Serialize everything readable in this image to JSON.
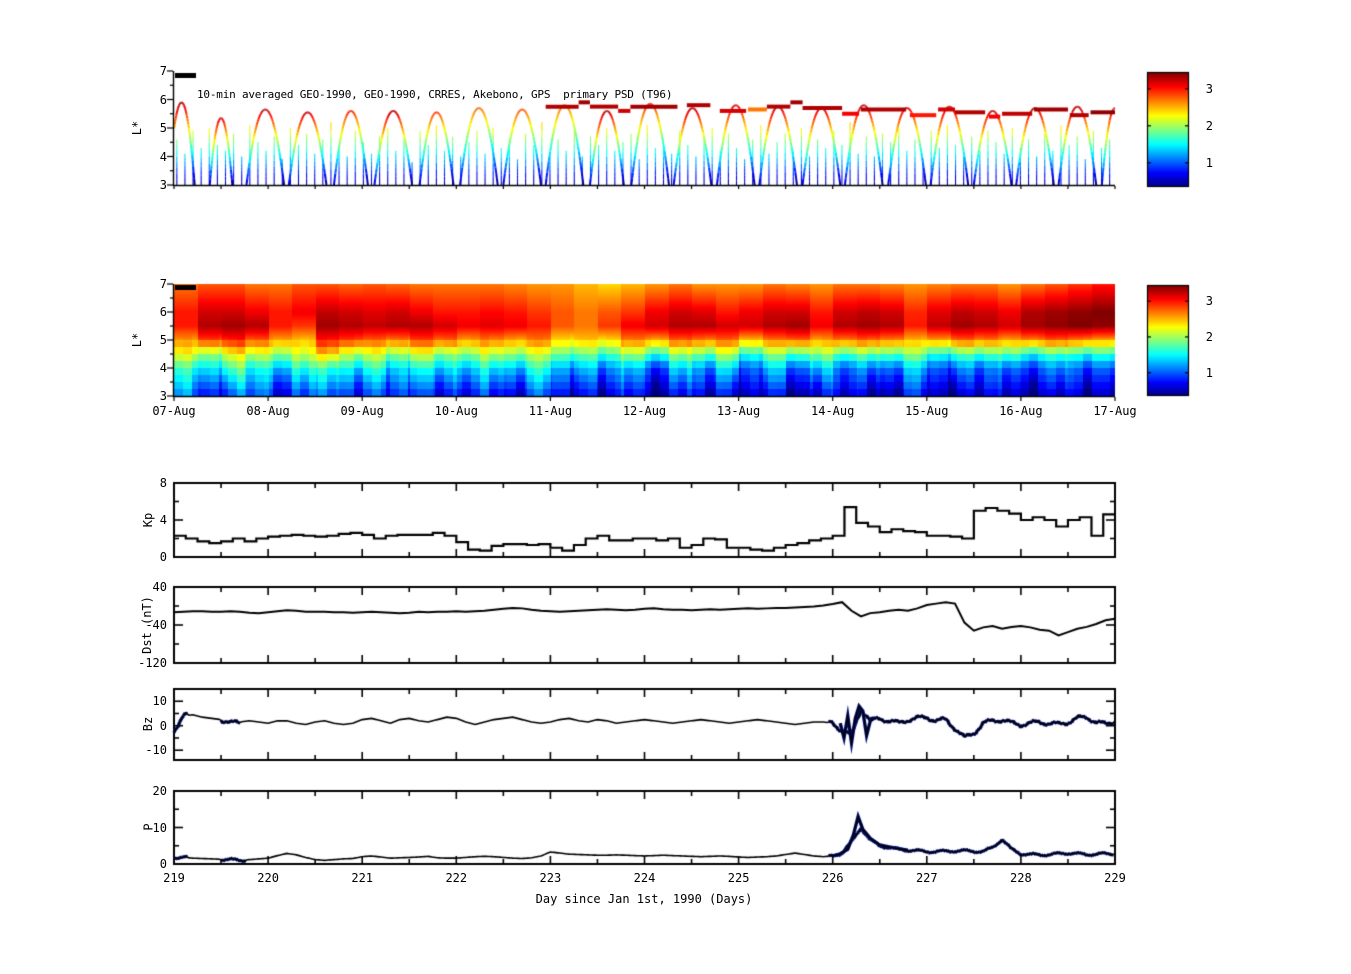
{
  "figure": {
    "background": "#ffffff",
    "xlabel": "Day since Jan 1st, 1990 (Days)",
    "x_ticks": [
      219,
      220,
      221,
      222,
      223,
      224,
      225,
      226,
      227,
      228,
      229
    ],
    "date_ticks": [
      "07-Aug",
      "08-Aug",
      "09-Aug",
      "10-Aug",
      "11-Aug",
      "12-Aug",
      "13-Aug",
      "14-Aug",
      "15-Aug",
      "16-Aug",
      "17-Aug"
    ],
    "colors": {
      "line": "#000000",
      "storm_overlay": "#00107a",
      "frame": "#000000",
      "background": "#ffffff"
    }
  },
  "colorbar": {
    "colormap": "jet",
    "vmin": 0.35,
    "vmax": 3.45,
    "ticks": [
      1,
      2,
      3
    ]
  },
  "chart_data": [
    {
      "id": "psd_scatter",
      "type": "scatter",
      "title": "10-min averaged GEO-1990, GEO-1990, CRRES, Akebono, GPS  primary PSD (T96)",
      "ylabel": "L*",
      "ylim": [
        3,
        7
      ],
      "yticks": [
        3,
        4,
        5,
        6,
        7
      ],
      "xlim": [
        219,
        229
      ],
      "grid": false,
      "value_map": {
        "v_at_L3": 0.45,
        "v_per_L": 0.95
      },
      "arcs": [
        [
          219.08,
          0.14,
          5.9,
          3.35
        ],
        [
          219.5,
          0.12,
          5.35,
          3.2
        ],
        [
          219.97,
          0.2,
          5.65,
          3.3
        ],
        [
          220.42,
          0.2,
          5.55,
          3.25
        ],
        [
          220.88,
          0.18,
          5.6,
          3.0
        ],
        [
          221.33,
          0.2,
          5.6,
          3.3
        ],
        [
          221.79,
          0.18,
          5.55,
          2.9
        ],
        [
          222.24,
          0.2,
          5.7,
          2.75
        ],
        [
          222.7,
          0.2,
          5.65,
          2.85
        ],
        [
          223.15,
          0.2,
          5.8,
          2.8
        ],
        [
          223.6,
          0.18,
          5.6,
          3.3
        ],
        [
          224.06,
          0.2,
          5.85,
          3.0
        ],
        [
          224.51,
          0.2,
          5.7,
          3.3
        ],
        [
          224.97,
          0.2,
          5.8,
          3.2
        ],
        [
          225.42,
          0.2,
          5.75,
          3.3
        ],
        [
          225.88,
          0.2,
          5.7,
          3.25
        ],
        [
          226.33,
          0.2,
          5.8,
          3.3
        ],
        [
          226.79,
          0.2,
          5.7,
          3.2
        ],
        [
          227.24,
          0.2,
          5.75,
          3.3
        ],
        [
          227.7,
          0.2,
          5.6,
          3.25
        ],
        [
          228.15,
          0.2,
          5.7,
          3.3
        ],
        [
          228.6,
          0.2,
          5.75,
          3.3
        ],
        [
          229.0,
          0.14,
          5.7,
          3.2
        ]
      ],
      "geo_segments": [
        [
          222.95,
          223.3,
          5.75,
          3.3
        ],
        [
          223.3,
          223.42,
          5.9,
          3.35
        ],
        [
          223.42,
          223.72,
          5.75,
          3.3
        ],
        [
          223.72,
          223.85,
          5.6,
          3.2
        ],
        [
          223.85,
          224.35,
          5.75,
          3.35
        ],
        [
          224.45,
          224.7,
          5.8,
          3.3
        ],
        [
          224.8,
          225.08,
          5.6,
          3.2
        ],
        [
          225.1,
          225.3,
          5.65,
          2.7
        ],
        [
          225.3,
          225.55,
          5.75,
          3.3
        ],
        [
          225.55,
          225.68,
          5.9,
          3.35
        ],
        [
          225.68,
          226.1,
          5.7,
          3.3
        ],
        [
          226.1,
          226.28,
          5.5,
          3.1
        ],
        [
          226.3,
          226.78,
          5.65,
          3.3
        ],
        [
          226.82,
          227.1,
          5.45,
          3.0
        ],
        [
          227.12,
          227.3,
          5.65,
          3.2
        ],
        [
          227.3,
          227.62,
          5.55,
          3.3
        ],
        [
          227.66,
          227.78,
          5.4,
          3.1
        ],
        [
          227.8,
          228.12,
          5.5,
          3.25
        ],
        [
          228.14,
          228.5,
          5.65,
          3.35
        ],
        [
          228.52,
          228.72,
          5.45,
          3.3
        ],
        [
          228.74,
          229.0,
          5.55,
          3.4
        ]
      ],
      "spikes": {
        "t0": 219.03,
        "dt": 0.0862,
        "heights": [
          4.6,
          4.1,
          4.9,
          4.3,
          5.0,
          4.4,
          4.2,
          4.8,
          4.0,
          5.1,
          4.5,
          4.2,
          4.7,
          3.9,
          5.0,
          4.4,
          4.8,
          4.1,
          4.6,
          5.2,
          4.3,
          4.0,
          4.9,
          4.5,
          4.1,
          4.7,
          5.0,
          4.2,
          4.6,
          3.8,
          4.9,
          4.4,
          5.1,
          4.2,
          4.7,
          4.0,
          4.5,
          4.9,
          4.1,
          5.0,
          4.3,
          4.6,
          3.9,
          4.8,
          4.4,
          5.2,
          4.1,
          4.6,
          4.2,
          4.9,
          4.0,
          4.7,
          4.4,
          5.0,
          4.2,
          4.5,
          4.8,
          3.9,
          5.1,
          4.3,
          4.6,
          4.1,
          4.9,
          4.4,
          4.0,
          4.7,
          5.0,
          4.2,
          4.8,
          4.3,
          3.9,
          4.6,
          5.1,
          4.1,
          4.5,
          4.8,
          4.2,
          5.0,
          4.0,
          4.6,
          4.3,
          4.9,
          4.4,
          5.2,
          4.1,
          4.7,
          4.0,
          4.8,
          4.5,
          5.0,
          4.2,
          4.6,
          3.9,
          4.9,
          4.3,
          5.1,
          4.4,
          4.0,
          4.7,
          4.2,
          4.9,
          4.5,
          4.1,
          5.0,
          4.3,
          4.6,
          4.0,
          4.8,
          4.2,
          5.1,
          4.4,
          4.7,
          3.9,
          4.9,
          4.3,
          4.6
        ]
      }
    },
    {
      "id": "psd_heatmap",
      "type": "heatmap",
      "ylabel": "L*",
      "ylim": [
        3,
        7
      ],
      "yticks": [
        3,
        4,
        5,
        6,
        7
      ],
      "xlim": [
        219,
        229
      ],
      "xtick_labels": [
        "07-Aug",
        "08-Aug",
        "09-Aug",
        "10-Aug",
        "11-Aug",
        "12-Aug",
        "13-Aug",
        "14-Aug",
        "15-Aug",
        "16-Aug",
        "17-Aug"
      ],
      "L_nodes": [
        3,
        4,
        4.5,
        5,
        5.5,
        6,
        7
      ],
      "columns_per_day": 4,
      "columns": [
        [
          1.0,
          1.6,
          2.2,
          2.6,
          3.0,
          3.0,
          2.7
        ],
        [
          0.8,
          1.5,
          2.0,
          2.9,
          3.3,
          3.2,
          2.8
        ],
        [
          1.0,
          1.8,
          2.3,
          3.0,
          3.35,
          3.2,
          2.8
        ],
        [
          0.9,
          1.5,
          2.1,
          2.8,
          3.3,
          3.1,
          2.7
        ],
        [
          0.7,
          1.4,
          2.0,
          2.6,
          3.0,
          3.0,
          2.7
        ],
        [
          1.0,
          1.7,
          2.2,
          2.5,
          2.9,
          3.1,
          2.8
        ],
        [
          0.9,
          1.6,
          2.4,
          3.0,
          3.35,
          3.25,
          2.8
        ],
        [
          0.8,
          1.5,
          2.1,
          2.9,
          3.3,
          3.2,
          2.75
        ],
        [
          1.0,
          1.7,
          2.2,
          2.8,
          3.25,
          3.15,
          2.8
        ],
        [
          0.7,
          1.3,
          1.9,
          2.7,
          3.3,
          3.2,
          2.75
        ],
        [
          0.9,
          1.6,
          2.2,
          2.9,
          3.3,
          3.1,
          2.7
        ],
        [
          0.8,
          1.5,
          2.0,
          2.8,
          3.2,
          3.0,
          2.7
        ],
        [
          0.6,
          1.3,
          1.9,
          2.6,
          3.1,
          3.0,
          2.7
        ],
        [
          0.8,
          1.5,
          2.1,
          2.7,
          3.15,
          3.05,
          2.7
        ],
        [
          0.7,
          1.4,
          2.0,
          2.6,
          3.1,
          3.0,
          2.65
        ],
        [
          0.9,
          1.6,
          2.1,
          2.7,
          3.0,
          2.9,
          2.6
        ],
        [
          0.6,
          1.2,
          1.8,
          2.4,
          2.8,
          2.8,
          2.6
        ],
        [
          0.8,
          1.4,
          1.9,
          2.5,
          2.7,
          2.7,
          2.5
        ],
        [
          0.5,
          1.1,
          1.7,
          2.4,
          2.9,
          2.8,
          2.4
        ],
        [
          0.7,
          1.3,
          2.0,
          2.7,
          3.1,
          2.9,
          2.5
        ],
        [
          0.5,
          1.0,
          1.7,
          2.6,
          3.2,
          3.1,
          2.6
        ],
        [
          0.7,
          1.4,
          2.0,
          2.8,
          3.3,
          3.2,
          2.7
        ],
        [
          0.5,
          1.1,
          1.8,
          2.7,
          3.3,
          3.15,
          2.6
        ],
        [
          0.8,
          1.5,
          2.1,
          2.8,
          3.2,
          3.0,
          2.6
        ],
        [
          0.5,
          1.0,
          1.6,
          2.5,
          3.2,
          3.1,
          2.6
        ],
        [
          0.6,
          1.3,
          1.9,
          2.7,
          3.3,
          3.2,
          2.7
        ],
        [
          0.5,
          1.1,
          1.8,
          2.8,
          3.35,
          3.2,
          2.65
        ],
        [
          0.7,
          1.4,
          2.0,
          2.6,
          3.1,
          3.0,
          2.6
        ],
        [
          0.5,
          1.0,
          1.7,
          2.7,
          3.3,
          3.2,
          2.7
        ],
        [
          0.6,
          1.2,
          1.9,
          2.8,
          3.35,
          3.25,
          2.7
        ],
        [
          0.5,
          1.1,
          1.8,
          2.7,
          3.3,
          3.2,
          2.65
        ],
        [
          0.7,
          1.3,
          1.9,
          2.5,
          3.0,
          2.95,
          2.6
        ],
        [
          0.5,
          1.0,
          1.6,
          2.6,
          3.25,
          3.15,
          2.65
        ],
        [
          0.6,
          1.2,
          1.8,
          2.8,
          3.35,
          3.25,
          2.7
        ],
        [
          0.5,
          1.0,
          1.7,
          2.7,
          3.3,
          3.2,
          2.7
        ],
        [
          0.6,
          1.1,
          1.8,
          2.6,
          3.2,
          3.1,
          2.6
        ],
        [
          0.5,
          1.0,
          1.6,
          2.7,
          3.35,
          3.3,
          2.7
        ],
        [
          0.5,
          1.1,
          1.7,
          2.8,
          3.4,
          3.35,
          2.8
        ],
        [
          0.5,
          1.0,
          1.6,
          2.7,
          3.45,
          3.4,
          2.9
        ],
        [
          0.6,
          1.1,
          1.7,
          2.6,
          3.4,
          3.45,
          3.0
        ]
      ]
    },
    {
      "id": "kp",
      "type": "line",
      "ylabel": "Kp",
      "ylim": [
        0,
        8
      ],
      "yticks": [
        0,
        4,
        8
      ],
      "yminors": [
        2,
        6
      ],
      "step": true,
      "t0": 219,
      "dt": 0.125,
      "values": [
        2.3,
        2.0,
        1.7,
        1.5,
        1.7,
        2.0,
        1.7,
        2.0,
        2.2,
        2.3,
        2.4,
        2.3,
        2.2,
        2.3,
        2.5,
        2.6,
        2.4,
        2.0,
        2.3,
        2.4,
        2.4,
        2.4,
        2.6,
        2.3,
        1.6,
        0.8,
        0.7,
        1.2,
        1.4,
        1.4,
        1.3,
        1.4,
        1.0,
        0.7,
        1.3,
        2.0,
        2.3,
        1.8,
        1.8,
        2.0,
        2.0,
        1.8,
        2.0,
        1.0,
        1.3,
        2.0,
        1.9,
        1.0,
        1.0,
        0.8,
        0.7,
        1.0,
        1.3,
        1.5,
        1.8,
        2.0,
        2.3,
        5.4,
        3.7,
        3.3,
        2.7,
        3.0,
        2.8,
        2.7,
        2.3,
        2.3,
        2.2,
        2.0,
        5.0,
        5.3,
        5.0,
        4.7,
        4.0,
        4.3,
        4.0,
        3.3,
        4.0,
        4.3,
        2.3,
        4.6
      ]
    },
    {
      "id": "dst",
      "type": "line",
      "ylabel": "Dst (nT)",
      "ylim": [
        -120,
        40
      ],
      "yticks": [
        40,
        -40,
        -120
      ],
      "yminors": [
        0,
        -80
      ],
      "step": false,
      "t0": 219,
      "dt": 0.1,
      "values": [
        -13,
        -12,
        -11,
        -11,
        -12,
        -12,
        -11,
        -12,
        -14,
        -15,
        -13,
        -11,
        -9,
        -10,
        -12,
        -12,
        -12,
        -13,
        -13,
        -14,
        -13,
        -12,
        -13,
        -14,
        -15,
        -14,
        -12,
        -13,
        -12,
        -12,
        -11,
        -12,
        -11,
        -10,
        -8,
        -6,
        -4,
        -5,
        -8,
        -10,
        -11,
        -12,
        -11,
        -10,
        -9,
        -8,
        -7,
        -8,
        -9,
        -8,
        -6,
        -5,
        -7,
        -8,
        -8,
        -9,
        -8,
        -7,
        -8,
        -7,
        -6,
        -5,
        -6,
        -5,
        -4,
        -4,
        -3,
        -2,
        -1,
        1,
        4,
        8,
        -10,
        -22,
        -15,
        -13,
        -10,
        -8,
        -10,
        -5,
        2,
        5,
        8,
        5,
        -35,
        -52,
        -45,
        -42,
        -48,
        -44,
        -42,
        -45,
        -50,
        -52,
        -62,
        -55,
        -48,
        -44,
        -38,
        -30,
        -27
      ]
    },
    {
      "id": "bz",
      "type": "line",
      "ylabel": "Bz",
      "ylim": [
        -14,
        15
      ],
      "yticks": [
        10,
        0,
        -10
      ],
      "yminors": [
        5,
        -5
      ],
      "step": false,
      "t0": 219,
      "dt": 0.1,
      "storm_zones": [
        [
          219.0,
          219.16
        ],
        [
          219.5,
          219.72
        ],
        [
          225.95,
          229.0
        ]
      ],
      "storm_jitter": 0.8,
      "storm_detail": {
        "t": [
          226.08,
          226.12,
          226.16,
          226.2,
          226.24,
          226.28,
          226.32,
          226.36,
          226.4,
          226.44
        ],
        "v": [
          1,
          -5,
          4,
          -7,
          3,
          8,
          6,
          -4,
          2,
          3
        ]
      },
      "values": [
        -2,
        4,
        4.5,
        3.5,
        3,
        2.5,
        1,
        1.5,
        2,
        1.5,
        1,
        2,
        2,
        1,
        0.5,
        1.5,
        2,
        1,
        0.5,
        1,
        2.5,
        3,
        2,
        1,
        2.5,
        3,
        2,
        1.5,
        2.5,
        3.5,
        3,
        1.5,
        0.5,
        1.5,
        2.5,
        3,
        3.5,
        2.5,
        1.5,
        1,
        1.5,
        2.5,
        3,
        2,
        1.5,
        2.5,
        2,
        1,
        1.5,
        2,
        2.5,
        2,
        1.5,
        1,
        1.5,
        2,
        2.5,
        2,
        1.5,
        1,
        1.5,
        2,
        2.5,
        2,
        1.5,
        1,
        0.5,
        1,
        1.5,
        1.5,
        1,
        -2,
        -4,
        7,
        2,
        3,
        2,
        1,
        2.5,
        3,
        3.5,
        2,
        2.5,
        -1,
        -5,
        -3,
        1,
        2,
        2.5,
        1,
        0.5,
        1,
        1.5,
        1,
        0.5,
        1.5,
        3,
        3.5,
        1.5,
        0.5,
        2
      ]
    },
    {
      "id": "p",
      "type": "line",
      "ylabel": "P",
      "ylim": [
        0,
        20
      ],
      "yticks": [
        0,
        10,
        20
      ],
      "yminors": [
        5,
        15
      ],
      "step": false,
      "t0": 219,
      "dt": 0.1,
      "storm_zones": [
        [
          219.0,
          219.16
        ],
        [
          219.5,
          219.78
        ],
        [
          225.95,
          229.0
        ]
      ],
      "storm_jitter": 0.3,
      "storm_detail": {
        "t": [
          226.0,
          226.08,
          226.16,
          226.22,
          226.27,
          226.32,
          226.4,
          226.5,
          226.65,
          226.8
        ],
        "v": [
          2.2,
          2.8,
          4.0,
          8.0,
          13.0,
          9.5,
          7.0,
          5.2,
          4.4,
          3.8
        ]
      },
      "values": [
        1.8,
        1.8,
        1.6,
        1.5,
        1.4,
        1.3,
        1.2,
        1.0,
        1.2,
        1.4,
        1.6,
        2.3,
        2.9,
        2.5,
        1.8,
        1.2,
        1.0,
        1.2,
        1.4,
        1.5,
        2.0,
        2.2,
        1.9,
        1.6,
        1.7,
        1.8,
        1.9,
        2.1,
        1.7,
        1.6,
        1.6,
        1.8,
        2.0,
        2.1,
        2.0,
        1.8,
        1.6,
        1.5,
        1.7,
        2.2,
        3.3,
        3.0,
        2.7,
        2.6,
        2.5,
        2.4,
        2.4,
        2.5,
        2.4,
        2.3,
        2.2,
        2.3,
        2.4,
        2.3,
        2.2,
        2.1,
        2.0,
        2.1,
        2.2,
        2.1,
        1.9,
        1.8,
        1.9,
        2.0,
        2.2,
        2.6,
        3.0,
        2.6,
        2.2,
        2.0,
        2.2,
        3.0,
        6.0,
        10.0,
        6.5,
        5.0,
        4.5,
        4.0,
        3.8,
        3.6,
        3.4,
        3.4,
        3.5,
        3.6,
        3.6,
        3.5,
        3.4,
        4.5,
        6.8,
        4.0,
        2.8,
        2.6,
        2.5,
        2.6,
        2.8,
        3.0,
        2.8,
        2.6,
        2.7,
        2.8,
        2.8
      ]
    }
  ]
}
